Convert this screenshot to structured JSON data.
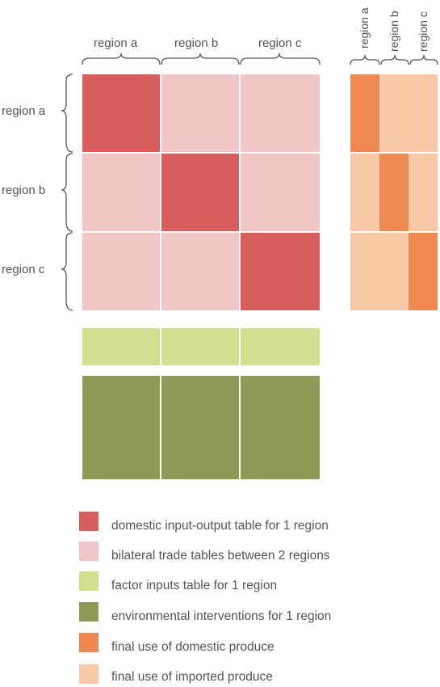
{
  "colors": {
    "domestic_io": "#d95f5f",
    "bilateral_trade": "#f1c6c6",
    "factor_inputs": "#d3df8e",
    "environmental": "#8c9a55",
    "final_domestic": "#ee8751",
    "final_imported": "#f9c8a6",
    "gap": "#ffffff"
  },
  "column_headers": [
    "region a",
    "region b",
    "region c"
  ],
  "row_headers": [
    "region a",
    "region b",
    "region c"
  ],
  "final_demand_headers": [
    "region a",
    "region b",
    "region c"
  ],
  "legend": [
    {
      "label": "domestic input-output table for 1 region",
      "color": "#d95f5f"
    },
    {
      "label": "bilateral trade tables between 2 regions",
      "color": "#f1c6c6"
    },
    {
      "label": "factor inputs table for 1 region",
      "color": "#d3df8e"
    },
    {
      "label": "environmental interventions for 1 region",
      "color": "#8c9a55"
    },
    {
      "label": "final use of domestic produce",
      "color": "#ee8751"
    },
    {
      "label": "final use of imported produce",
      "color": "#f9c8a6"
    }
  ]
}
